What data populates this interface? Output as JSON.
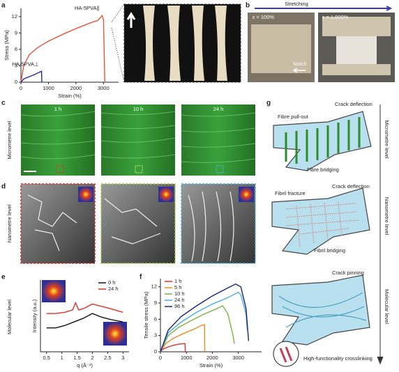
{
  "panel_labels": [
    "a",
    "b",
    "c",
    "d",
    "e",
    "f",
    "g"
  ],
  "chart_data": [
    {
      "type": "line",
      "xlabel": "Strain (%)",
      "ylabel": "Stress (MPa)",
      "xlim": [
        0,
        3550
      ],
      "xticks": [
        0,
        1000,
        2000,
        3000
      ],
      "ylim": [
        0,
        13.5
      ],
      "yticks": [
        0,
        3,
        6,
        9,
        12
      ],
      "legend": "inline",
      "series": [
        {
          "name": "HA-5PVA∥",
          "color": "#e8553f",
          "x": [
            0,
            100,
            300,
            600,
            1000,
            1500,
            2000,
            2500,
            2800,
            2950,
            3000,
            3050
          ],
          "values": [
            0,
            3,
            5,
            6.3,
            7.5,
            8.7,
            9.8,
            10.8,
            11.3,
            12.2,
            11.5,
            0
          ]
        },
        {
          "name": "HA-5PVA⊥",
          "color": "#1f2a9c",
          "x": [
            0,
            100,
            300,
            500,
            700,
            750,
            760
          ],
          "values": [
            0,
            0.6,
            1.0,
            1.4,
            1.9,
            2.0,
            0
          ]
        }
      ]
    },
    {
      "type": "line",
      "xlabel": "q (Å⁻¹)",
      "ylabel": "Intensity (a.u.)",
      "xlim": [
        0.3,
        3.2
      ],
      "xticks": [
        0.5,
        1.0,
        1.5,
        2.0,
        2.5,
        3.0
      ],
      "ylim": [
        0,
        6
      ],
      "legend": "upper right",
      "series": [
        {
          "name": "0 h",
          "color": "#111111",
          "x": [
            0.5,
            0.8,
            1.1,
            1.4,
            1.7,
            2.0,
            2.3,
            2.6,
            3.0
          ],
          "values": [
            2.0,
            2.0,
            2.2,
            2.5,
            2.8,
            3.2,
            2.9,
            2.7,
            2.5
          ]
        },
        {
          "name": "24 h",
          "color": "#e0302a",
          "x": [
            0.5,
            0.8,
            1.1,
            1.35,
            1.45,
            1.55,
            1.7,
            2.0,
            2.3,
            2.6,
            3.0
          ],
          "values": [
            3.2,
            3.2,
            3.3,
            3.5,
            4.1,
            3.5,
            3.6,
            4.0,
            3.8,
            3.6,
            3.3
          ]
        }
      ]
    },
    {
      "type": "line",
      "xlabel": "Strain (%)",
      "ylabel": "Tensile stress (MPa)",
      "xlim": [
        0,
        3900
      ],
      "xticks": [
        0,
        1000,
        2000,
        3000
      ],
      "ylim": [
        0,
        13.5
      ],
      "yticks": [
        0,
        3,
        6,
        9,
        12
      ],
      "legend": "upper left",
      "series": [
        {
          "name": "1 h",
          "color": "#e0302a",
          "x": [
            0,
            100,
            300,
            500,
            700,
            900,
            950,
            960
          ],
          "values": [
            0,
            0.5,
            0.9,
            1.2,
            1.4,
            1.5,
            1.5,
            0
          ]
        },
        {
          "name": "5 h",
          "color": "#f08a1c",
          "x": [
            0,
            200,
            500,
            900,
            1300,
            1600,
            1700,
            1710
          ],
          "values": [
            0,
            1.5,
            2.5,
            3.4,
            4.2,
            4.9,
            5.0,
            0
          ]
        },
        {
          "name": "10 h",
          "color": "#7cb342",
          "x": [
            0,
            300,
            700,
            1200,
            1700,
            2200,
            2400,
            2600,
            2800,
            2850
          ],
          "values": [
            0,
            3,
            4.5,
            5.8,
            7,
            8,
            8.5,
            7,
            3,
            1.5
          ]
        },
        {
          "name": "24 h",
          "color": "#4ab0e0",
          "x": [
            0,
            300,
            800,
            1400,
            2000,
            2600,
            3000,
            3100,
            3300,
            3350
          ],
          "values": [
            0,
            3.5,
            5.5,
            7.3,
            8.8,
            10,
            11,
            10.5,
            7,
            4
          ]
        },
        {
          "name": "96 h",
          "color": "#1a237e",
          "x": [
            0,
            300,
            800,
            1400,
            2000,
            2600,
            2900,
            3100,
            3300,
            3400
          ],
          "values": [
            0,
            4,
            6.5,
            8.5,
            10.3,
            11.8,
            12.5,
            12,
            8,
            2
          ]
        }
      ]
    }
  ],
  "b": {
    "stretching": "Stretching",
    "left": "ε = 100%",
    "right": "ε = 1,000%",
    "notch": "Notch"
  },
  "c": {
    "times": [
      "1 h",
      "10 h",
      "24 h"
    ],
    "level": "Micrometre level"
  },
  "d": {
    "level": "Nanometre level"
  },
  "e": {
    "level": "Molecular level"
  },
  "g": {
    "levels": [
      "Micrometre level",
      "Nanometre level",
      "Molecular level"
    ],
    "labels": [
      "Fibre pull-out",
      "Crack deflection",
      "Fibre bridging",
      "Fibril fracture",
      "Crack deflection",
      "Fibril bridging",
      "Crack pinning",
      "High-functionality crosslinking"
    ]
  }
}
